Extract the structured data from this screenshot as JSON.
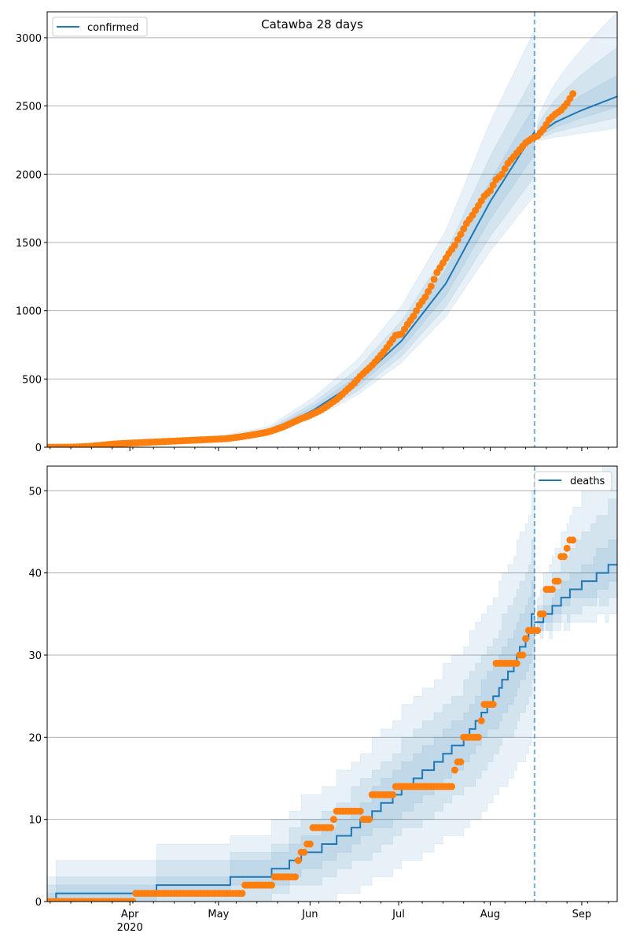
{
  "chart_data": [
    {
      "type": "line",
      "title": "Catawba 28 days",
      "legend": {
        "label": "confirmed",
        "placement": "top-left"
      },
      "x_start_date": "2020-03-04",
      "xlim_days": [
        0,
        193
      ],
      "forecast_start_day": 165,
      "x_tick_labels": [
        {
          "day": 28,
          "label": "Apr",
          "sub": "2020"
        },
        {
          "day": 58,
          "label": "May"
        },
        {
          "day": 89,
          "label": "Jun"
        },
        {
          "day": 119,
          "label": "Jul"
        },
        {
          "day": 150,
          "label": "Aug"
        },
        {
          "day": 181,
          "label": "Sep"
        }
      ],
      "ylim": [
        0,
        3190
      ],
      "y_ticks": [
        "0",
        "500",
        "1000",
        "1500",
        "2000",
        "2500",
        "3000"
      ],
      "grid": "horizontal",
      "observed": {
        "step_days": 2,
        "values": [
          0,
          0,
          0,
          0,
          1,
          2,
          4,
          6,
          10,
          14,
          18,
          22,
          25,
          28,
          30,
          32,
          34,
          36,
          38,
          40,
          42,
          44,
          46,
          48,
          50,
          52,
          54,
          56,
          58,
          60,
          62,
          66,
          72,
          78,
          85,
          92,
          100,
          108,
          120,
          135,
          150,
          170,
          190,
          210,
          225,
          245,
          265,
          290,
          320,
          350,
          390,
          430,
          470,
          520,
          560,
          600,
          650,
          700,
          760,
          820,
          830,
          900,
          960,
          1040,
          1100,
          1180,
          1280,
          1350,
          1420,
          1480,
          1560,
          1640,
          1700,
          1770,
          1840,
          1880,
          1960,
          2000,
          2080,
          2130,
          2180,
          2230,
          2260,
          2280,
          2330,
          2400,
          2440,
          2470,
          2520,
          2590
        ]
      },
      "model_median": [
        [
          0,
          5
        ],
        [
          28,
          20
        ],
        [
          58,
          55
        ],
        [
          75,
          110
        ],
        [
          90,
          270
        ],
        [
          105,
          480
        ],
        [
          120,
          780
        ],
        [
          135,
          1200
        ],
        [
          150,
          1800
        ],
        [
          165,
          2310
        ],
        [
          166,
          2290
        ],
        [
          172,
          2380
        ],
        [
          180,
          2460
        ],
        [
          193,
          2570
        ]
      ],
      "fit_band_fraction": {
        "inner": [
          0.07,
          0.08
        ],
        "middle": [
          0.14,
          0.18
        ],
        "outer": [
          0.2,
          0.32
        ]
      },
      "forecast_band_fraction": {
        "inner": [
          0.03,
          0.06
        ],
        "middle": [
          0.06,
          0.14
        ],
        "outer": [
          0.09,
          0.24
        ]
      }
    },
    {
      "type": "line",
      "legend": {
        "label": "deaths",
        "placement": "top-right"
      },
      "x_start_date": "2020-03-04",
      "xlim_days": [
        0,
        193
      ],
      "forecast_start_day": 165,
      "x_tick_labels": [
        {
          "day": 28,
          "label": "Apr",
          "sub": "2020"
        },
        {
          "day": 58,
          "label": "May"
        },
        {
          "day": 89,
          "label": "Jun"
        },
        {
          "day": 119,
          "label": "Jul"
        },
        {
          "day": 150,
          "label": "Aug"
        },
        {
          "day": 181,
          "label": "Sep"
        }
      ],
      "ylim": [
        0,
        53
      ],
      "y_ticks": [
        "0",
        "10",
        "20",
        "30",
        "40",
        "50"
      ],
      "grid": "horizontal",
      "observed_runs": [
        [
          0,
          29,
          0
        ],
        [
          30,
          66,
          1
        ],
        [
          67,
          76,
          2
        ],
        [
          77,
          84,
          3
        ],
        [
          85,
          85,
          5
        ],
        [
          86,
          87,
          6
        ],
        [
          88,
          89,
          7
        ],
        [
          90,
          96,
          9
        ],
        [
          97,
          97,
          10
        ],
        [
          98,
          106,
          11
        ],
        [
          107,
          109,
          10
        ],
        [
          110,
          117,
          13
        ],
        [
          118,
          137,
          14
        ],
        [
          138,
          138,
          16
        ],
        [
          139,
          140,
          17
        ],
        [
          141,
          146,
          20
        ],
        [
          147,
          147,
          22
        ],
        [
          148,
          151,
          24
        ],
        [
          152,
          159,
          29
        ],
        [
          160,
          161,
          30
        ],
        [
          162,
          162,
          32
        ],
        [
          163,
          166,
          33
        ],
        [
          167,
          168,
          35
        ],
        [
          169,
          171,
          38
        ],
        [
          172,
          173,
          39
        ],
        [
          174,
          175,
          42
        ],
        [
          176,
          176,
          43
        ],
        [
          177,
          178,
          44
        ]
      ],
      "model_median_steps": [
        [
          0,
          0
        ],
        [
          3,
          1
        ],
        [
          37,
          2
        ],
        [
          62,
          3
        ],
        [
          76,
          4
        ],
        [
          82,
          5
        ],
        [
          86,
          6
        ],
        [
          93,
          7
        ],
        [
          98,
          8
        ],
        [
          103,
          9
        ],
        [
          106,
          10
        ],
        [
          110,
          11
        ],
        [
          113,
          12
        ],
        [
          117,
          13
        ],
        [
          120,
          14
        ],
        [
          124,
          15
        ],
        [
          127,
          16
        ],
        [
          131,
          17
        ],
        [
          134,
          18
        ],
        [
          137,
          19
        ],
        [
          141,
          20
        ],
        [
          143,
          21
        ],
        [
          145,
          22
        ],
        [
          147,
          23
        ],
        [
          149,
          24
        ],
        [
          151,
          25
        ],
        [
          153,
          26
        ],
        [
          154,
          27
        ],
        [
          156,
          28
        ],
        [
          158,
          29
        ],
        [
          159,
          30
        ],
        [
          160,
          31
        ],
        [
          162,
          32
        ],
        [
          163,
          33
        ],
        [
          164,
          35
        ],
        [
          165,
          34
        ],
        [
          168,
          35
        ],
        [
          171,
          36
        ],
        [
          174,
          37
        ],
        [
          177,
          38
        ],
        [
          181,
          39
        ],
        [
          186,
          40
        ],
        [
          190,
          41
        ]
      ],
      "fit_band_sqrt_scale": {
        "inner": 0.7,
        "middle": 1.4,
        "outer": 2.4
      },
      "forecast_band_offsets": {
        "inner": [
          2,
          3
        ],
        "middle": [
          4,
          8
        ],
        "outer": [
          6,
          14
        ]
      }
    }
  ]
}
